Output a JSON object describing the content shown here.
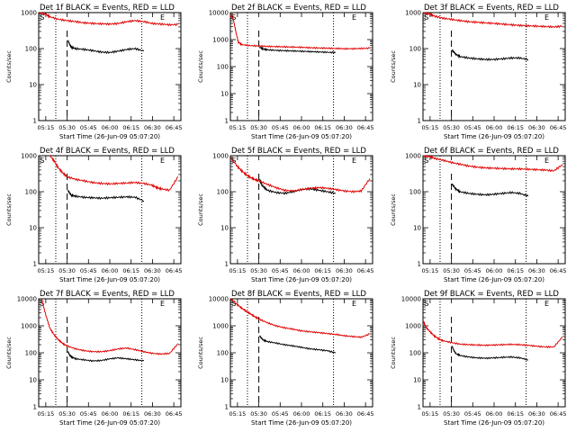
{
  "figure": {
    "colors": {
      "events": "#000000",
      "lld": "#e00000",
      "axis": "#000000",
      "background": "#ffffff"
    },
    "layout": "3x3 grid"
  },
  "chart_data": [
    {
      "type": "line",
      "title": "Det 1f BLACK = Events, RED = LLD",
      "xlabel": "Start Time (26-Jun-09 05:07:20)",
      "ylabel": "Counts/sec",
      "x_ticks": [
        "05:15",
        "05:30",
        "05:45",
        "06:00",
        "06:15",
        "06:30",
        "06:45"
      ],
      "y_ticks": [
        "1",
        "10",
        "100",
        "1000"
      ],
      "yscale": "log",
      "xlim": [
        5.167,
        6.833
      ],
      "ylim": [
        1,
        1000
      ],
      "markers": {
        "S": 5.17,
        "E": 6.58
      },
      "dotted_vlines": [
        5.367,
        6.375
      ],
      "dashed_vlines": [
        5.5
      ],
      "series": [
        {
          "name": "Events",
          "color": "#000000",
          "x": [
            5.51,
            5.53,
            5.55,
            5.6,
            5.7,
            5.8,
            5.9,
            6.0,
            6.1,
            6.2,
            6.3,
            6.4
          ],
          "values": [
            170,
            130,
            110,
            100,
            95,
            88,
            80,
            78,
            85,
            95,
            100,
            85
          ]
        },
        {
          "name": "LLD",
          "color": "#e00000",
          "x": [
            5.17,
            5.25,
            5.3,
            5.4,
            5.5,
            5.6,
            5.7,
            5.8,
            5.9,
            6.0,
            6.1,
            6.2,
            6.3,
            6.4,
            6.5,
            6.6,
            6.7,
            6.8
          ],
          "values": [
            1000,
            900,
            760,
            650,
            600,
            560,
            520,
            500,
            490,
            480,
            500,
            560,
            600,
            560,
            500,
            480,
            460,
            470
          ]
        }
      ]
    },
    {
      "type": "line",
      "title": "Det 2f BLACK = Events, RED = LLD",
      "xlabel": "Start Time (26-Jun-09 05:07:20)",
      "ylabel": "Counts/sec",
      "x_ticks": [
        "05:15",
        "05:30",
        "05:45",
        "06:00",
        "06:15",
        "06:30",
        "06:45"
      ],
      "y_ticks": [
        "1",
        "10",
        "100",
        "1000",
        "10000"
      ],
      "yscale": "log",
      "xlim": [
        5.167,
        6.833
      ],
      "ylim": [
        1,
        10000
      ],
      "markers": {
        "S": 5.17,
        "E": 6.58
      },
      "dotted_vlines": [
        5.367,
        6.375
      ],
      "dashed_vlines": [
        5.5
      ],
      "series": [
        {
          "name": "Events",
          "color": "#000000",
          "x": [
            5.51,
            5.55,
            5.6,
            5.7,
            5.8,
            5.9,
            6.0,
            6.1,
            6.2,
            6.3,
            6.4
          ],
          "values": [
            520,
            450,
            420,
            400,
            390,
            380,
            370,
            360,
            350,
            340,
            330
          ]
        },
        {
          "name": "LLD",
          "color": "#e00000",
          "x": [
            5.17,
            5.2,
            5.23,
            5.26,
            5.3,
            5.4,
            5.5,
            5.6,
            5.7,
            5.8,
            5.9,
            6.0,
            6.1,
            6.2,
            6.3,
            6.4,
            6.5,
            6.6,
            6.7,
            6.8
          ],
          "values": [
            8000,
            6000,
            2000,
            800,
            650,
            600,
            580,
            560,
            550,
            540,
            530,
            520,
            500,
            490,
            480,
            470,
            460,
            460,
            470,
            480
          ]
        }
      ]
    },
    {
      "type": "line",
      "title": "Det 3f BLACK = Events, RED = LLD",
      "xlabel": "Start Time (26-Jun-09 05:07:20)",
      "ylabel": "Counts/sec",
      "x_ticks": [
        "05:15",
        "05:30",
        "05:45",
        "06:00",
        "06:15",
        "06:30",
        "06:45"
      ],
      "y_ticks": [
        "1",
        "10",
        "100",
        "1000"
      ],
      "yscale": "log",
      "xlim": [
        5.167,
        6.833
      ],
      "ylim": [
        1,
        1000
      ],
      "markers": {
        "S": 5.17,
        "E": 6.58
      },
      "dotted_vlines": [
        5.367,
        6.375
      ],
      "dashed_vlines": [
        5.5
      ],
      "series": [
        {
          "name": "Events",
          "color": "#000000",
          "x": [
            5.51,
            5.53,
            5.55,
            5.6,
            5.7,
            5.8,
            5.9,
            6.0,
            6.1,
            6.2,
            6.3,
            6.4
          ],
          "values": [
            90,
            80,
            70,
            60,
            55,
            52,
            50,
            50,
            52,
            55,
            55,
            50
          ]
        },
        {
          "name": "LLD",
          "color": "#e00000",
          "x": [
            5.17,
            5.25,
            5.3,
            5.4,
            5.5,
            5.6,
            5.7,
            5.8,
            5.9,
            6.0,
            6.1,
            6.2,
            6.3,
            6.4,
            6.5,
            6.6,
            6.7,
            6.8
          ],
          "values": [
            1000,
            900,
            800,
            700,
            650,
            600,
            560,
            540,
            520,
            500,
            480,
            460,
            440,
            430,
            420,
            410,
            400,
            420
          ]
        }
      ]
    },
    {
      "type": "line",
      "title": "Det 4f BLACK = Events, RED = LLD",
      "xlabel": "Start Time (26-Jun-09 05:07:20)",
      "ylabel": "Counts/sec",
      "x_ticks": [
        "05:15",
        "05:30",
        "05:45",
        "06:00",
        "06:15",
        "06:30",
        "06:45"
      ],
      "y_ticks": [
        "1",
        "10",
        "100",
        "1000"
      ],
      "yscale": "log",
      "xlim": [
        5.167,
        6.833
      ],
      "ylim": [
        1,
        1000
      ],
      "markers": {
        "S": 5.17,
        "E": 6.58
      },
      "dotted_vlines": [
        5.367,
        6.375
      ],
      "dashed_vlines": [
        5.5
      ],
      "series": [
        {
          "name": "Events",
          "color": "#000000",
          "x": [
            5.51,
            5.53,
            5.55,
            5.6,
            5.7,
            5.8,
            5.9,
            6.0,
            6.1,
            6.2,
            6.3,
            6.4
          ],
          "values": [
            110,
            90,
            80,
            75,
            70,
            68,
            66,
            68,
            70,
            72,
            70,
            55
          ]
        },
        {
          "name": "LLD",
          "color": "#e00000",
          "x": [
            5.3,
            5.35,
            5.4,
            5.45,
            5.5,
            5.6,
            5.7,
            5.8,
            5.9,
            6.0,
            6.1,
            6.2,
            6.3,
            6.4,
            6.5,
            6.55,
            6.6,
            6.7,
            6.8
          ],
          "values": [
            1000,
            700,
            450,
            330,
            260,
            220,
            200,
            180,
            170,
            165,
            170,
            175,
            180,
            170,
            150,
            130,
            120,
            110,
            260
          ]
        }
      ]
    },
    {
      "type": "line",
      "title": "Det 5f BLACK = Events, RED = LLD",
      "xlabel": "Start Time (26-Jun-09 05:07:20)",
      "ylabel": "Counts/sec",
      "x_ticks": [
        "05:15",
        "05:30",
        "05:45",
        "06:00",
        "06:15",
        "06:30",
        "06:45"
      ],
      "y_ticks": [
        "1",
        "10",
        "100",
        "1000"
      ],
      "yscale": "log",
      "xlim": [
        5.167,
        6.833
      ],
      "ylim": [
        1,
        1000
      ],
      "markers": {
        "S": 5.17,
        "E": 6.58
      },
      "dotted_vlines": [
        5.367,
        6.375
      ],
      "dashed_vlines": [
        5.5
      ],
      "series": [
        {
          "name": "Events",
          "color": "#000000",
          "x": [
            5.51,
            5.53,
            5.55,
            5.6,
            5.7,
            5.8,
            5.9,
            6.0,
            6.1,
            6.2,
            6.3,
            6.4
          ],
          "values": [
            220,
            160,
            140,
            110,
            95,
            90,
            100,
            115,
            120,
            110,
            100,
            90
          ]
        },
        {
          "name": "LLD",
          "color": "#e00000",
          "x": [
            5.17,
            5.25,
            5.3,
            5.35,
            5.4,
            5.45,
            5.5,
            5.6,
            5.7,
            5.8,
            5.9,
            6.0,
            6.1,
            6.2,
            6.3,
            6.4,
            6.5,
            6.6,
            6.7,
            6.8
          ],
          "values": [
            900,
            500,
            380,
            300,
            250,
            220,
            200,
            160,
            130,
            110,
            105,
            115,
            125,
            130,
            125,
            115,
            105,
            100,
            105,
            230
          ]
        }
      ]
    },
    {
      "type": "line",
      "title": "Det 6f BLACK = Events, RED = LLD",
      "xlabel": "Start Time (26-Jun-09 05:07:20)",
      "ylabel": "Counts/sec",
      "x_ticks": [
        "05:15",
        "05:30",
        "05:45",
        "06:00",
        "06:15",
        "06:30",
        "06:45"
      ],
      "y_ticks": [
        "1",
        "10",
        "100",
        "1000"
      ],
      "yscale": "log",
      "xlim": [
        5.167,
        6.833
      ],
      "ylim": [
        1,
        1000
      ],
      "markers": {
        "S": 5.17,
        "E": 6.58
      },
      "dotted_vlines": [
        5.367,
        6.375
      ],
      "dashed_vlines": [
        5.5
      ],
      "series": [
        {
          "name": "Events",
          "color": "#000000",
          "x": [
            5.51,
            5.53,
            5.55,
            5.6,
            5.7,
            5.8,
            5.9,
            6.0,
            6.1,
            6.2,
            6.3,
            6.4
          ],
          "values": [
            160,
            140,
            120,
            100,
            90,
            85,
            82,
            85,
            90,
            95,
            90,
            75
          ]
        },
        {
          "name": "LLD",
          "color": "#e00000",
          "x": [
            5.17,
            5.25,
            5.3,
            5.4,
            5.5,
            5.6,
            5.7,
            5.8,
            5.9,
            6.0,
            6.1,
            6.2,
            6.3,
            6.4,
            6.5,
            6.6,
            6.7,
            6.8
          ],
          "values": [
            1000,
            950,
            850,
            750,
            650,
            580,
            520,
            480,
            460,
            450,
            440,
            430,
            430,
            420,
            410,
            400,
            380,
            560
          ]
        }
      ]
    },
    {
      "type": "line",
      "title": "Det 7f BLACK = Events, RED = LLD",
      "xlabel": "Start Time (26-Jun-09 05:07:20)",
      "ylabel": "Counts/sec",
      "x_ticks": [
        "05:15",
        "05:30",
        "05:45",
        "06:00",
        "06:15",
        "06:30",
        "06:45"
      ],
      "y_ticks": [
        "1",
        "10",
        "100",
        "1000",
        "10000"
      ],
      "yscale": "log",
      "xlim": [
        5.167,
        6.833
      ],
      "ylim": [
        1,
        10000
      ],
      "markers": {
        "S": 5.17,
        "E": 6.58
      },
      "dotted_vlines": [
        5.367,
        6.375
      ],
      "dashed_vlines": [
        5.5
      ],
      "series": [
        {
          "name": "Events",
          "color": "#000000",
          "x": [
            5.51,
            5.53,
            5.55,
            5.6,
            5.7,
            5.8,
            5.9,
            6.0,
            6.1,
            6.2,
            6.3,
            6.4
          ],
          "values": [
            110,
            80,
            70,
            60,
            55,
            50,
            52,
            60,
            65,
            60,
            55,
            50
          ]
        },
        {
          "name": "LLD",
          "color": "#e00000",
          "x": [
            5.2,
            5.25,
            5.3,
            5.35,
            5.4,
            5.45,
            5.5,
            5.6,
            5.7,
            5.8,
            5.9,
            6.0,
            6.1,
            6.2,
            6.3,
            6.4,
            6.5,
            6.6,
            6.7,
            6.8
          ],
          "values": [
            10000,
            2500,
            800,
            450,
            300,
            220,
            180,
            140,
            120,
            110,
            110,
            120,
            140,
            150,
            130,
            110,
            95,
            90,
            95,
            220
          ]
        }
      ]
    },
    {
      "type": "line",
      "title": "Det 8f BLACK = Events, RED = LLD",
      "xlabel": "Start Time (26-Jun-09 05:07:20)",
      "ylabel": "Counts/sec",
      "x_ticks": [
        "05:15",
        "05:30",
        "05:45",
        "06:00",
        "06:15",
        "06:30",
        "06:45"
      ],
      "y_ticks": [
        "1",
        "10",
        "100",
        "1000",
        "10000"
      ],
      "yscale": "log",
      "xlim": [
        5.167,
        6.833
      ],
      "ylim": [
        1,
        10000
      ],
      "markers": {
        "S": 5.17,
        "E": 6.58
      },
      "dotted_vlines": [
        5.367,
        6.375
      ],
      "dashed_vlines": [
        5.5
      ],
      "series": [
        {
          "name": "Events",
          "color": "#000000",
          "x": [
            5.51,
            5.53,
            5.55,
            5.6,
            5.7,
            5.8,
            5.9,
            6.0,
            6.1,
            6.2,
            6.3,
            6.4
          ],
          "values": [
            420,
            350,
            300,
            260,
            230,
            200,
            180,
            160,
            140,
            130,
            120,
            100
          ]
        },
        {
          "name": "LLD",
          "color": "#e00000",
          "x": [
            5.17,
            5.25,
            5.3,
            5.35,
            5.4,
            5.45,
            5.5,
            5.6,
            5.7,
            5.8,
            5.9,
            6.0,
            6.1,
            6.2,
            6.3,
            6.4,
            6.5,
            6.6,
            6.7,
            6.8
          ],
          "values": [
            10000,
            6000,
            4500,
            3500,
            2800,
            2200,
            1800,
            1300,
            1000,
            850,
            750,
            650,
            600,
            560,
            520,
            480,
            430,
            400,
            380,
            500
          ]
        }
      ]
    },
    {
      "type": "line",
      "title": "Det 9f BLACK = Events, RED = LLD",
      "xlabel": "Start Time (26-Jun-09 05:07:20)",
      "ylabel": "Counts/sec",
      "x_ticks": [
        "05:15",
        "05:30",
        "05:45",
        "06:00",
        "06:15",
        "06:30",
        "06:45"
      ],
      "y_ticks": [
        "1",
        "10",
        "100",
        "1000",
        "10000"
      ],
      "yscale": "log",
      "xlim": [
        5.167,
        6.833
      ],
      "ylim": [
        1,
        10000
      ],
      "markers": {
        "S": 5.17,
        "E": 6.58
      },
      "dotted_vlines": [
        5.367,
        6.375
      ],
      "dashed_vlines": [
        5.5
      ],
      "series": [
        {
          "name": "Events",
          "color": "#000000",
          "x": [
            5.51,
            5.53,
            5.55,
            5.6,
            5.7,
            5.8,
            5.9,
            6.0,
            6.1,
            6.2,
            6.3,
            6.4
          ],
          "values": [
            170,
            120,
            95,
            80,
            70,
            65,
            63,
            65,
            68,
            70,
            65,
            55
          ]
        },
        {
          "name": "LLD",
          "color": "#e00000",
          "x": [
            5.17,
            5.2,
            5.25,
            5.3,
            5.35,
            5.4,
            5.5,
            5.6,
            5.7,
            5.8,
            5.9,
            6.0,
            6.1,
            6.2,
            6.3,
            6.4,
            6.5,
            6.6,
            6.7,
            6.8
          ],
          "values": [
            1500,
            900,
            600,
            420,
            330,
            280,
            240,
            210,
            200,
            195,
            190,
            195,
            200,
            205,
            200,
            190,
            175,
            165,
            165,
            380
          ]
        }
      ]
    }
  ]
}
